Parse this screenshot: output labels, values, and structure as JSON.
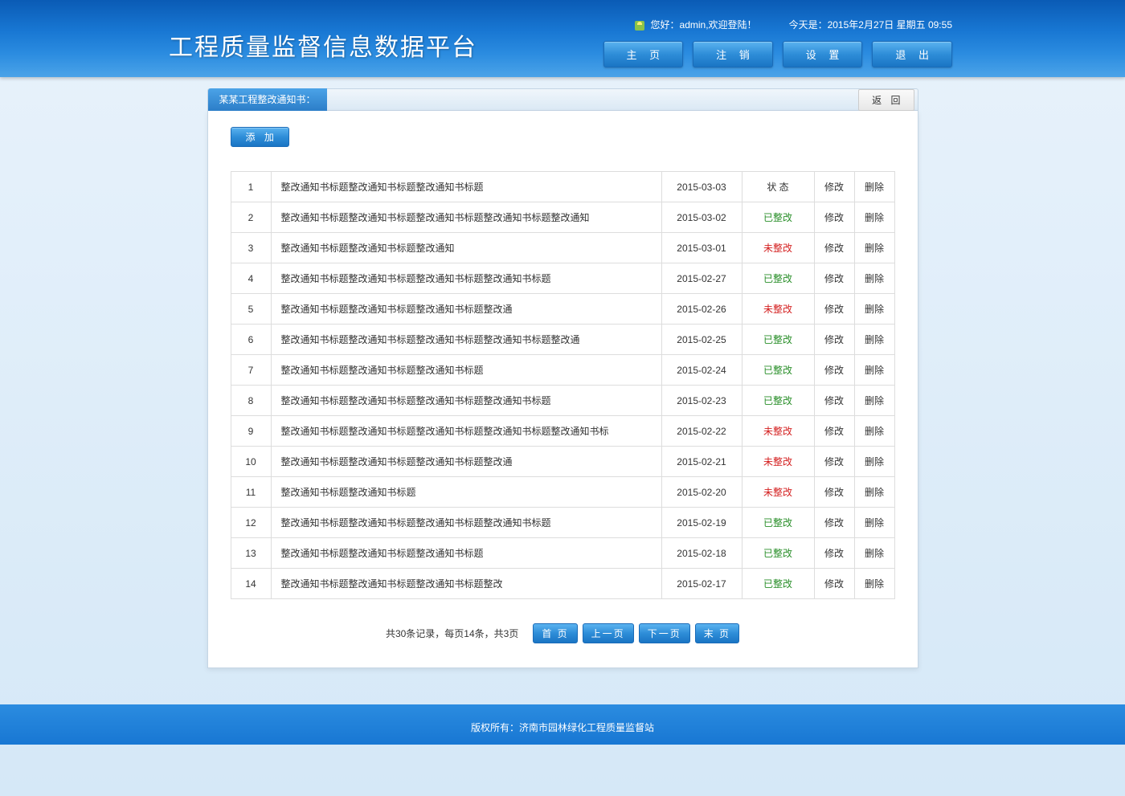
{
  "header": {
    "title": "工程质量监督信息数据平台",
    "welcome_prefix": "您好：",
    "user": "admin",
    "welcome_suffix": ",欢迎登陆！",
    "date_prefix": "今天是：",
    "date": "2015年2月27日 星期五 09:55",
    "nav": {
      "home": "主 页",
      "logout": "注 销",
      "settings": "设 置",
      "exit": "退 出"
    }
  },
  "panel": {
    "title": "某某工程整改通知书：",
    "back": "返 回",
    "add": "添 加"
  },
  "status_labels": {
    "header": "状 态",
    "done": "已整改",
    "pending": "未整改"
  },
  "actions": {
    "edit": "修改",
    "delete": "删除"
  },
  "rows": [
    {
      "num": "1",
      "title": "整改通知书标题整改通知书标题整改通知书标题",
      "date": "2015-03-03",
      "status": "header"
    },
    {
      "num": "2",
      "title": "整改通知书标题整改通知书标题整改通知书标题整改通知书标题整改通知",
      "date": "2015-03-02",
      "status": "done"
    },
    {
      "num": "3",
      "title": "整改通知书标题整改通知书标题整改通知",
      "date": "2015-03-01",
      "status": "pending"
    },
    {
      "num": "4",
      "title": "整改通知书标题整改通知书标题整改通知书标题整改通知书标题",
      "date": "2015-02-27",
      "status": "done"
    },
    {
      "num": "5",
      "title": "整改通知书标题整改通知书标题整改通知书标题整改通",
      "date": "2015-02-26",
      "status": "pending"
    },
    {
      "num": "6",
      "title": "整改通知书标题整改通知书标题整改通知书标题整改通知书标题整改通",
      "date": "2015-02-25",
      "status": "done"
    },
    {
      "num": "7",
      "title": "整改通知书标题整改通知书标题整改通知书标题",
      "date": "2015-02-24",
      "status": "done"
    },
    {
      "num": "8",
      "title": "整改通知书标题整改通知书标题整改通知书标题整改通知书标题",
      "date": "2015-02-23",
      "status": "done"
    },
    {
      "num": "9",
      "title": "整改通知书标题整改通知书标题整改通知书标题整改通知书标题整改通知书标",
      "date": "2015-02-22",
      "status": "pending"
    },
    {
      "num": "10",
      "title": "整改通知书标题整改通知书标题整改通知书标题整改通",
      "date": "2015-02-21",
      "status": "pending"
    },
    {
      "num": "11",
      "title": "整改通知书标题整改通知书标题",
      "date": "2015-02-20",
      "status": "pending"
    },
    {
      "num": "12",
      "title": "整改通知书标题整改通知书标题整改通知书标题整改通知书标题",
      "date": "2015-02-19",
      "status": "done"
    },
    {
      "num": "13",
      "title": "整改通知书标题整改通知书标题整改通知书标题",
      "date": "2015-02-18",
      "status": "done"
    },
    {
      "num": "14",
      "title": "整改通知书标题整改通知书标题整改通知书标题整改",
      "date": "2015-02-17",
      "status": "done"
    }
  ],
  "pagination": {
    "info": "共30条记录，每页14条，共3页",
    "first": "首 页",
    "prev": "上一页",
    "next": "下一页",
    "last": "末 页"
  },
  "footer": {
    "copyright": "版权所有：济南市园林绿化工程质量监督站"
  }
}
